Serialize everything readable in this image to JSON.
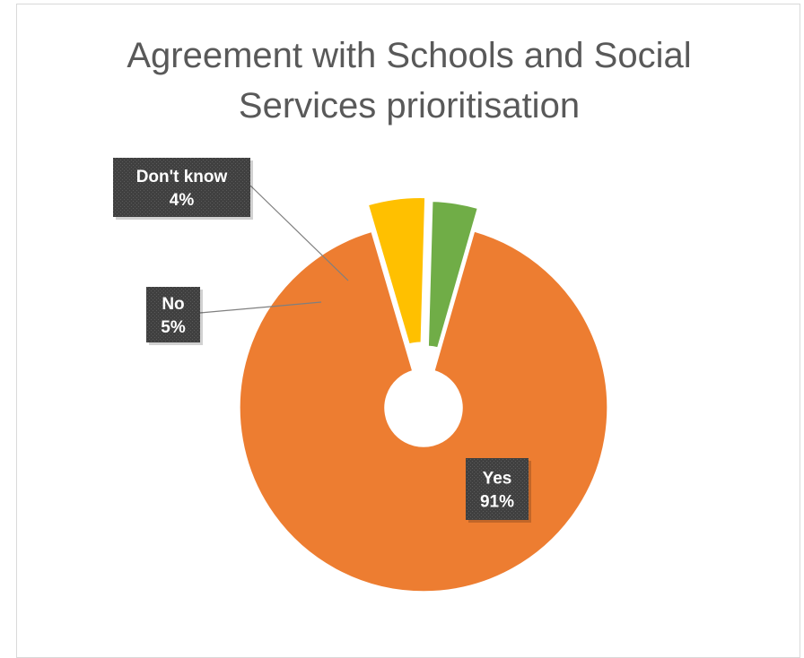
{
  "chart_data": {
    "type": "pie",
    "variant": "exploded-doughnut",
    "title": "Agreement with Schools and Social Services prioritisation",
    "title_lines": [
      "Agreement with Schools and Social",
      "Services prioritisation"
    ],
    "categories": [
      "Yes",
      "No",
      "Don't know"
    ],
    "values": [
      91,
      5,
      4
    ],
    "unit": "%",
    "data_labels": [
      {
        "category": "Yes",
        "value": "91%"
      },
      {
        "category": "No",
        "value": "5%"
      },
      {
        "category": "Don't know",
        "value": "4%"
      }
    ],
    "colors": {
      "Yes": "#ED7D31",
      "No": "#FFC000",
      "Don't know": "#70AD47"
    },
    "legend": "none",
    "label_box_color": "#404040"
  }
}
